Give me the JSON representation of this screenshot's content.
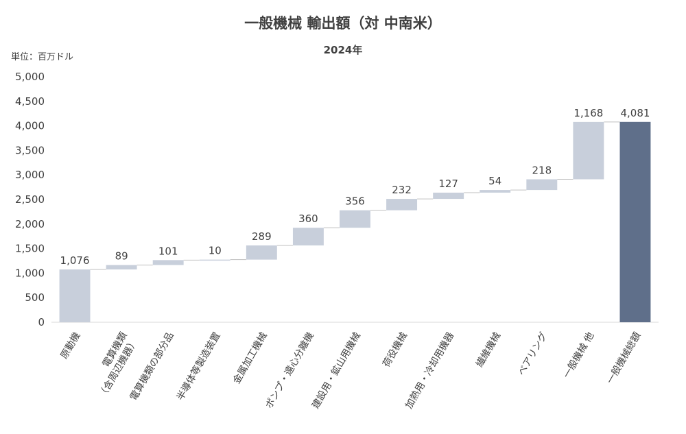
{
  "page": {
    "title": "一般機械 輸出額（対 中南米）",
    "subtitle": "2024年",
    "unit_label": "単位：百万ドル"
  },
  "chart_data": {
    "type": "bar",
    "subtype": "waterfall",
    "title": "一般機械 輸出額（対 中南米）",
    "subtitle": "2024年",
    "ylabel": "",
    "xlabel": "",
    "ylim": [
      0,
      5000
    ],
    "yticks": [
      0,
      500,
      1000,
      1500,
      2000,
      2500,
      3000,
      3500,
      4000,
      4500,
      5000
    ],
    "ytick_labels": [
      "0",
      "500",
      "1,000",
      "1,500",
      "2,000",
      "2,500",
      "3,000",
      "3,500",
      "4,000",
      "4,500",
      "5,000"
    ],
    "grid": false,
    "categories": [
      "原動機",
      "電算機類\n（含周辺機器）",
      "電算機類の部分品",
      "半導体等製造装置",
      "金属加工機械",
      "ポンプ・遠心分離機",
      "建設用・鉱山用機械",
      "荷役機械",
      "加熱用・冷却用機器",
      "繊維機械",
      "ベアリング",
      "一般機械 他",
      "一般機械総額"
    ],
    "values": [
      1076,
      89,
      101,
      10,
      289,
      360,
      356,
      232,
      127,
      54,
      218,
      1168,
      4081
    ],
    "value_labels": [
      "1,076",
      "89",
      "101",
      "10",
      "289",
      "360",
      "356",
      "232",
      "127",
      "54",
      "218",
      "1,168",
      "4,081"
    ],
    "is_total": [
      false,
      false,
      false,
      false,
      false,
      false,
      false,
      false,
      false,
      false,
      false,
      false,
      true
    ],
    "colors": {
      "increment": "#c8cfdb",
      "total": "#5f6f8a",
      "connector": "#bfbfbf",
      "axis": "#d9d9d9"
    }
  }
}
